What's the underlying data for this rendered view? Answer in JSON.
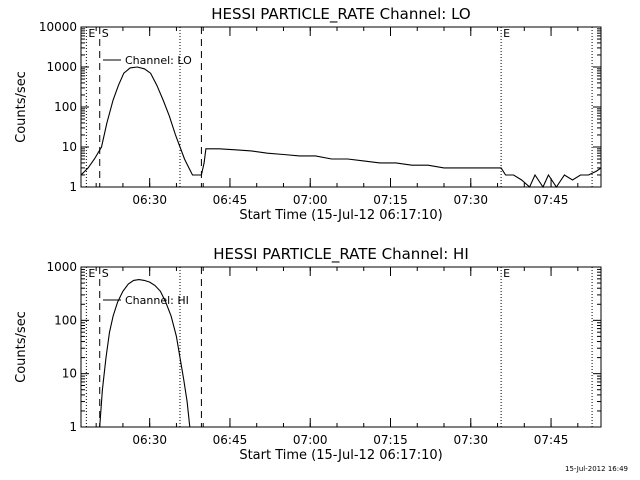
{
  "timestamp": "15-Jul-2012 16:49",
  "chart_data": [
    {
      "type": "line",
      "title": "HESSI PARTICLE_RATE Channel: LO",
      "xlabel": "Start Time (15-Jul-12 06:17:10)",
      "ylabel": "Counts/sec",
      "yscale": "log",
      "ylim": [
        1,
        10000
      ],
      "xlim": [
        "06:17:10",
        "07:54:20"
      ],
      "x_ticks": [
        "06:30",
        "06:45",
        "07:00",
        "07:15",
        "07:30",
        "07:45"
      ],
      "y_ticks": [
        "1",
        "10",
        "100",
        "1000",
        "10000"
      ],
      "legend": "Channel: LO",
      "markers": [
        {
          "label": "E",
          "time": "06:18:10",
          "style": "dotted"
        },
        {
          "label": "S",
          "time": "06:20:40",
          "style": "dashed"
        },
        {
          "label": "",
          "time": "06:35:40",
          "style": "dotted"
        },
        {
          "label": "",
          "time": "06:39:40",
          "style": "dashed"
        },
        {
          "label": "E",
          "time": "07:35:40",
          "style": "dotted"
        },
        {
          "label": "",
          "time": "07:52:40",
          "style": "dotted"
        }
      ],
      "series": [
        {
          "name": "Channel: LO",
          "x": [
            "06:17:10",
            "06:18:30",
            "06:19:40",
            "06:21:00",
            "06:22:00",
            "06:23:10",
            "06:24:10",
            "06:25:10",
            "06:26:20",
            "06:27:40",
            "06:29:00",
            "06:30:10",
            "06:31:20",
            "06:32:30",
            "06:33:40",
            "06:34:50",
            "06:35:40",
            "06:36:30",
            "06:37:20",
            "06:38:00",
            "06:38:20",
            "06:39:00",
            "06:39:40",
            "06:40:10",
            "06:40:30",
            "06:43:00",
            "06:46:00",
            "06:49:00",
            "06:52:00",
            "06:55:00",
            "06:58:00",
            "07:01:00",
            "07:04:00",
            "07:07:00",
            "07:10:00",
            "07:13:00",
            "07:16:00",
            "07:19:00",
            "07:22:00",
            "07:25:00",
            "07:28:00",
            "07:31:00",
            "07:34:00",
            "07:35:40",
            "07:36:30",
            "07:38:00",
            "07:39:30",
            "07:41:00",
            "07:42:00",
            "07:43:30",
            "07:44:30",
            "07:46:00",
            "07:47:30",
            "07:49:00",
            "07:50:30",
            "07:52:00",
            "07:53:30",
            "07:54:20"
          ],
          "y": [
            2,
            3,
            5,
            10,
            40,
            150,
            350,
            700,
            950,
            1000,
            900,
            700,
            350,
            150,
            60,
            20,
            10,
            5,
            3,
            2,
            2,
            2,
            2,
            4,
            9,
            9,
            8.5,
            8,
            7,
            6.5,
            6,
            6,
            5,
            5,
            4.5,
            4,
            4,
            3.5,
            3.5,
            3,
            3,
            3,
            3,
            3,
            2,
            2,
            1.5,
            1,
            2,
            1,
            2,
            1,
            2,
            1.5,
            2,
            2,
            2.5,
            3
          ]
        }
      ]
    },
    {
      "type": "line",
      "title": "HESSI PARTICLE_RATE Channel: HI",
      "xlabel": "Start Time (15-Jul-12 06:17:10)",
      "ylabel": "Counts/sec",
      "yscale": "log",
      "ylim": [
        1,
        1000
      ],
      "xlim": [
        "06:17:10",
        "07:54:20"
      ],
      "x_ticks": [
        "06:30",
        "06:45",
        "07:00",
        "07:15",
        "07:30",
        "07:45"
      ],
      "y_ticks": [
        "1",
        "10",
        "100",
        "1000"
      ],
      "legend": "Channel: HI",
      "markers": [
        {
          "label": "E",
          "time": "06:18:10",
          "style": "dotted"
        },
        {
          "label": "S",
          "time": "06:20:40",
          "style": "dashed"
        },
        {
          "label": "",
          "time": "06:35:40",
          "style": "dotted"
        },
        {
          "label": "",
          "time": "06:39:40",
          "style": "dashed"
        },
        {
          "label": "E",
          "time": "07:35:40",
          "style": "dotted"
        },
        {
          "label": "",
          "time": "07:52:40",
          "style": "dotted"
        }
      ],
      "series": [
        {
          "name": "Channel: HI",
          "x": [
            "06:20:40",
            "06:21:10",
            "06:21:50",
            "06:22:30",
            "06:23:10",
            "06:24:00",
            "06:25:00",
            "06:26:00",
            "06:27:00",
            "06:28:00",
            "06:29:00",
            "06:30:00",
            "06:31:00",
            "06:32:00",
            "06:33:00",
            "06:34:00",
            "06:35:00",
            "06:35:40",
            "06:36:20",
            "06:37:00",
            "06:37:30"
          ],
          "y": [
            1,
            5,
            20,
            60,
            120,
            220,
            350,
            480,
            560,
            580,
            560,
            520,
            450,
            350,
            220,
            120,
            50,
            20,
            8,
            3,
            1
          ]
        }
      ]
    }
  ]
}
